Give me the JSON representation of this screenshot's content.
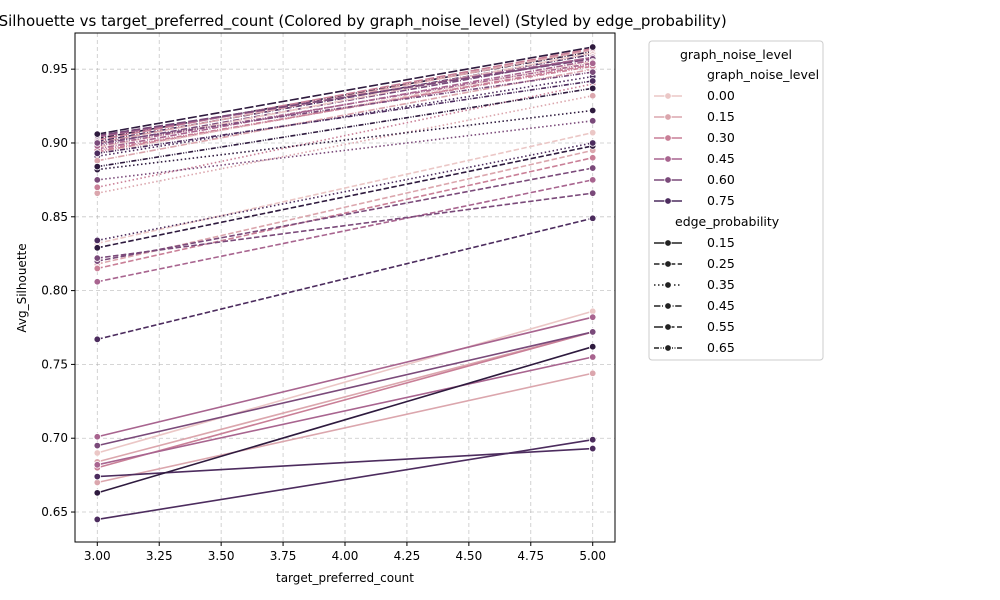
{
  "chart_data": {
    "type": "line",
    "title": "Avg_Silhouette vs target_preferred_count (Colored by graph_noise_level) (Styled by edge_probability)",
    "xlabel": "target_preferred_count",
    "ylabel": "Avg_Silhouette",
    "xlim": [
      2.91,
      5.09
    ],
    "ylim": [
      0.6297,
      0.9745
    ],
    "x_ticks": [
      "3.00",
      "3.25",
      "3.50",
      "3.75",
      "4.00",
      "4.25",
      "4.50",
      "4.75",
      "5.00"
    ],
    "y_ticks": [
      "0.65",
      "0.70",
      "0.75",
      "0.80",
      "0.85",
      "0.90",
      "0.95"
    ],
    "grid": true,
    "legend": {
      "position": "outside-right",
      "title": "graph_noise_level",
      "hue_title": "graph_noise_level",
      "hue_entries": [
        {
          "label": "0.00",
          "color": "#ebc7c6"
        },
        {
          "label": "0.15",
          "color": "#dba6ad"
        },
        {
          "label": "0.30",
          "color": "#c97f97"
        },
        {
          "label": "0.45",
          "color": "#a8648f"
        },
        {
          "label": "0.60",
          "color": "#7a4a7a"
        },
        {
          "label": "0.75",
          "color": "#4c2c5e"
        }
      ],
      "style_title": "edge_probability",
      "style_entries": [
        {
          "label": "0.15",
          "dash": "solid"
        },
        {
          "label": "0.25",
          "dash": "dashed"
        },
        {
          "label": "0.35",
          "dash": "dotted"
        },
        {
          "label": "0.45",
          "dash": "dashdot"
        },
        {
          "label": "0.55",
          "dash": "longdash"
        },
        {
          "label": "0.65",
          "dash": "dashdotdot"
        }
      ]
    },
    "x": [
      3.0,
      5.0
    ],
    "series": [
      {
        "values": [
          0.69,
          0.786
        ],
        "color": "#ebc7c6",
        "dash": "solid"
      },
      {
        "values": [
          0.67,
          0.744
        ],
        "color": "#dba6ad",
        "dash": "solid"
      },
      {
        "values": [
          0.684,
          0.772
        ],
        "color": "#dba6ad",
        "dash": "solid"
      },
      {
        "values": [
          0.68,
          0.772
        ],
        "color": "#c97f97",
        "dash": "solid"
      },
      {
        "values": [
          0.701,
          0.782
        ],
        "color": "#a8648f",
        "dash": "solid"
      },
      {
        "values": [
          0.682,
          0.755
        ],
        "color": "#a8648f",
        "dash": "solid"
      },
      {
        "values": [
          0.695,
          0.772
        ],
        "color": "#7a4a7a",
        "dash": "solid"
      },
      {
        "values": [
          0.674,
          0.693
        ],
        "color": "#4c2c5e",
        "dash": "solid"
      },
      {
        "values": [
          0.645,
          0.699
        ],
        "color": "#4c2c5e",
        "dash": "solid"
      },
      {
        "values": [
          0.663,
          0.762
        ],
        "color": "#2e1a3e",
        "dash": "solid"
      },
      {
        "values": [
          0.832,
          0.907
        ],
        "color": "#ebc7c6",
        "dash": "dashed"
      },
      {
        "values": [
          0.818,
          0.895
        ],
        "color": "#dba6ad",
        "dash": "dashed"
      },
      {
        "values": [
          0.815,
          0.89
        ],
        "color": "#c97f97",
        "dash": "dashed"
      },
      {
        "values": [
          0.806,
          0.875
        ],
        "color": "#a8648f",
        "dash": "dashed"
      },
      {
        "values": [
          0.82,
          0.883
        ],
        "color": "#7a4a7a",
        "dash": "dashed"
      },
      {
        "values": [
          0.822,
          0.866
        ],
        "color": "#7a4a7a",
        "dash": "dashed"
      },
      {
        "values": [
          0.767,
          0.849
        ],
        "color": "#4c2c5e",
        "dash": "dashed"
      },
      {
        "values": [
          0.829,
          0.898
        ],
        "color": "#2e1a3e",
        "dash": "dashed"
      },
      {
        "values": [
          0.866,
          0.932
        ],
        "color": "#dba6ad",
        "dash": "dotted"
      },
      {
        "values": [
          0.87,
          0.94
        ],
        "color": "#c97f97",
        "dash": "dotted"
      },
      {
        "values": [
          0.875,
          0.915
        ],
        "color": "#7a4a7a",
        "dash": "dotted"
      },
      {
        "values": [
          0.882,
          0.922
        ],
        "color": "#2e1a3e",
        "dash": "dotted"
      },
      {
        "values": [
          0.891,
          0.945
        ],
        "color": "#4c2c5e",
        "dash": "dotted"
      },
      {
        "values": [
          0.834,
          0.9
        ],
        "color": "#4c2c5e",
        "dash": "dotted"
      },
      {
        "values": [
          0.888,
          0.95
        ],
        "color": "#dba6ad",
        "dash": "dashdot"
      },
      {
        "values": [
          0.894,
          0.953
        ],
        "color": "#c97f97",
        "dash": "dashdot"
      },
      {
        "values": [
          0.896,
          0.956
        ],
        "color": "#a8648f",
        "dash": "dashdot"
      },
      {
        "values": [
          0.899,
          0.958
        ],
        "color": "#7a4a7a",
        "dash": "dashdot"
      },
      {
        "values": [
          0.901,
          0.96
        ],
        "color": "#4c2c5e",
        "dash": "dashdot"
      },
      {
        "values": [
          0.903,
          0.962
        ],
        "color": "#2e1a3e",
        "dash": "dashdot"
      },
      {
        "values": [
          0.897,
          0.961
        ],
        "color": "#ebc7c6",
        "dash": "longdash"
      },
      {
        "values": [
          0.9,
          0.963
        ],
        "color": "#dba6ad",
        "dash": "longdash"
      },
      {
        "values": [
          0.902,
          0.964
        ],
        "color": "#c97f97",
        "dash": "longdash"
      },
      {
        "values": [
          0.904,
          0.958
        ],
        "color": "#a8648f",
        "dash": "longdash"
      },
      {
        "values": [
          0.905,
          0.957
        ],
        "color": "#7a4a7a",
        "dash": "longdash"
      },
      {
        "values": [
          0.906,
          0.965
        ],
        "color": "#2e1a3e",
        "dash": "longdash"
      },
      {
        "values": [
          0.893,
          0.955
        ],
        "color": "#ebc7c6",
        "dash": "dashdotdot"
      },
      {
        "values": [
          0.895,
          0.952
        ],
        "color": "#c97f97",
        "dash": "dashdotdot"
      },
      {
        "values": [
          0.898,
          0.954
        ],
        "color": "#a8648f",
        "dash": "dashdotdot"
      },
      {
        "values": [
          0.9,
          0.948
        ],
        "color": "#7a4a7a",
        "dash": "dashdotdot"
      },
      {
        "values": [
          0.893,
          0.942
        ],
        "color": "#4c2c5e",
        "dash": "dashdotdot"
      },
      {
        "values": [
          0.884,
          0.937
        ],
        "color": "#2e1a3e",
        "dash": "dashdotdot"
      }
    ]
  }
}
